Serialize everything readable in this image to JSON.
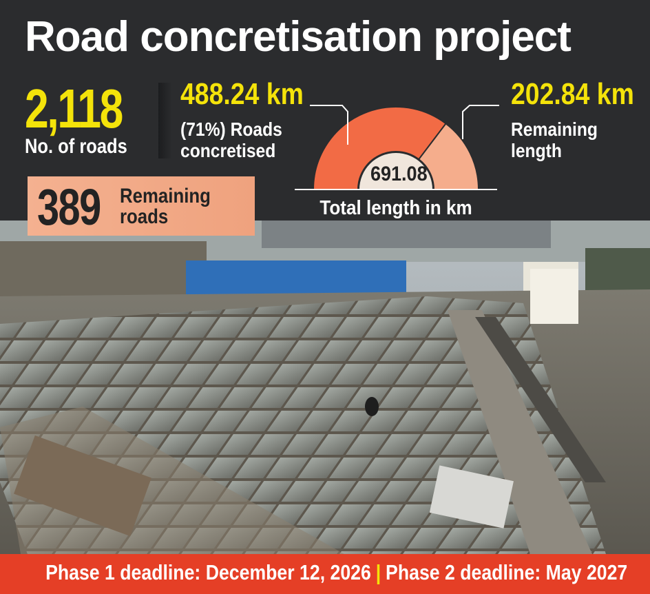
{
  "title": "Road concretisation project",
  "stats": {
    "roads_count": "2,118",
    "roads_label": "No. of roads",
    "concretised_km": "488.24 km",
    "concretised_label": "(71%) Roads concretised",
    "remaining_km": "202.84 km",
    "remaining_label": "Remaining length",
    "remaining_roads_num": "389",
    "remaining_roads_label": "Remaining roads"
  },
  "chart_data": {
    "type": "pie",
    "style": "semicircle-donut",
    "title": "",
    "center_value": "691.08",
    "caption": "Total length in km",
    "slices": [
      {
        "label": "Roads concretised",
        "value": 488.24,
        "color": "#f26b45"
      },
      {
        "label": "Remaining length",
        "value": 202.84,
        "color": "#f5ad8c"
      }
    ],
    "total": 691.08
  },
  "footer": {
    "phase1": "Phase 1 deadline: December 12, 2026",
    "separator": "|",
    "phase2": "Phase 2 deadline: May 2027"
  },
  "colors": {
    "background": "#2b2c2e",
    "highlight": "#f4e30a",
    "footer": "#e53f26",
    "remaining_box": "#f4b190"
  }
}
